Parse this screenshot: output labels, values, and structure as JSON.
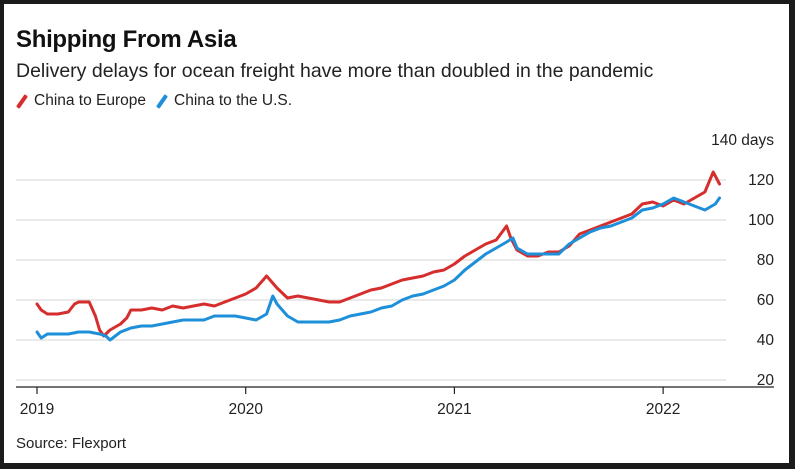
{
  "title": "Shipping From Asia",
  "subtitle": "Delivery delays for ocean freight have more than doubled in the pandemic",
  "source": "Source: Flexport",
  "chart_data": {
    "type": "line",
    "title": "Shipping From Asia",
    "subtitle": "Delivery delays for ocean freight have more than doubled in the pandemic",
    "y_unit_label": "140 days",
    "ylim": [
      20,
      140
    ],
    "y_ticks": [
      20,
      40,
      60,
      80,
      100,
      120,
      140
    ],
    "y_tick_labels": [
      "20",
      "40",
      "60",
      "80",
      "100",
      "120",
      "140 days"
    ],
    "xlim": [
      2019.0,
      2022.33
    ],
    "x_ticks": [
      2019,
      2020,
      2021,
      2022
    ],
    "x_tick_labels": [
      "2019",
      "2020",
      "2021",
      "2022"
    ],
    "grid": "horizontal",
    "y_axis_side": "right",
    "legend_position": "top-left",
    "series": [
      {
        "name": "China to Europe",
        "color": "#d62d2d",
        "x": [
          2019.0,
          2019.02,
          2019.05,
          2019.1,
          2019.15,
          2019.18,
          2019.2,
          2019.25,
          2019.28,
          2019.3,
          2019.32,
          2019.35,
          2019.4,
          2019.43,
          2019.45,
          2019.5,
          2019.55,
          2019.6,
          2019.65,
          2019.7,
          2019.75,
          2019.8,
          2019.85,
          2019.9,
          2019.95,
          2020.0,
          2020.05,
          2020.1,
          2020.15,
          2020.18,
          2020.2,
          2020.25,
          2020.3,
          2020.35,
          2020.4,
          2020.45,
          2020.5,
          2020.55,
          2020.6,
          2020.65,
          2020.7,
          2020.75,
          2020.8,
          2020.85,
          2020.9,
          2020.95,
          2021.0,
          2021.05,
          2021.1,
          2021.15,
          2021.2,
          2021.25,
          2021.27,
          2021.3,
          2021.35,
          2021.4,
          2021.45,
          2021.5,
          2021.55,
          2021.6,
          2021.65,
          2021.7,
          2021.75,
          2021.8,
          2021.85,
          2021.9,
          2021.95,
          2022.0,
          2022.05,
          2022.1,
          2022.15,
          2022.2,
          2022.24,
          2022.27
        ],
        "values": [
          58,
          55,
          53,
          53,
          54,
          58,
          59,
          59,
          52,
          45,
          42,
          45,
          48,
          51,
          55,
          55,
          56,
          55,
          57,
          56,
          57,
          58,
          57,
          59,
          61,
          63,
          66,
          72,
          66,
          63,
          61,
          62,
          61,
          60,
          59,
          59,
          61,
          63,
          65,
          66,
          68,
          70,
          71,
          72,
          74,
          75,
          78,
          82,
          85,
          88,
          90,
          97,
          91,
          85,
          82,
          82,
          84,
          84,
          87,
          93,
          95,
          97,
          99,
          101,
          103,
          108,
          109,
          107,
          110,
          108,
          111,
          114,
          124,
          118
        ]
      },
      {
        "name": "China to the U.S.",
        "color": "#1e8fd9",
        "x": [
          2019.0,
          2019.02,
          2019.05,
          2019.1,
          2019.15,
          2019.2,
          2019.25,
          2019.3,
          2019.33,
          2019.35,
          2019.4,
          2019.45,
          2019.5,
          2019.55,
          2019.6,
          2019.65,
          2019.7,
          2019.75,
          2019.8,
          2019.85,
          2019.9,
          2019.95,
          2020.0,
          2020.05,
          2020.1,
          2020.13,
          2020.15,
          2020.2,
          2020.25,
          2020.3,
          2020.35,
          2020.4,
          2020.45,
          2020.5,
          2020.55,
          2020.6,
          2020.65,
          2020.7,
          2020.75,
          2020.8,
          2020.85,
          2020.9,
          2020.95,
          2021.0,
          2021.05,
          2021.1,
          2021.15,
          2021.2,
          2021.25,
          2021.28,
          2021.3,
          2021.35,
          2021.4,
          2021.45,
          2021.5,
          2021.55,
          2021.6,
          2021.65,
          2021.7,
          2021.75,
          2021.8,
          2021.85,
          2021.9,
          2021.95,
          2022.0,
          2022.05,
          2022.1,
          2022.15,
          2022.2,
          2022.25,
          2022.27
        ],
        "values": [
          44,
          41,
          43,
          43,
          43,
          44,
          44,
          43,
          42,
          40,
          44,
          46,
          47,
          47,
          48,
          49,
          50,
          50,
          50,
          52,
          52,
          52,
          51,
          50,
          53,
          62,
          58,
          52,
          49,
          49,
          49,
          49,
          50,
          52,
          53,
          54,
          56,
          57,
          60,
          62,
          63,
          65,
          67,
          70,
          75,
          79,
          83,
          86,
          89,
          91,
          86,
          83,
          83,
          83,
          83,
          88,
          91,
          94,
          96,
          97,
          99,
          101,
          105,
          106,
          108,
          111,
          109,
          107,
          105,
          108,
          111
        ]
      }
    ]
  }
}
